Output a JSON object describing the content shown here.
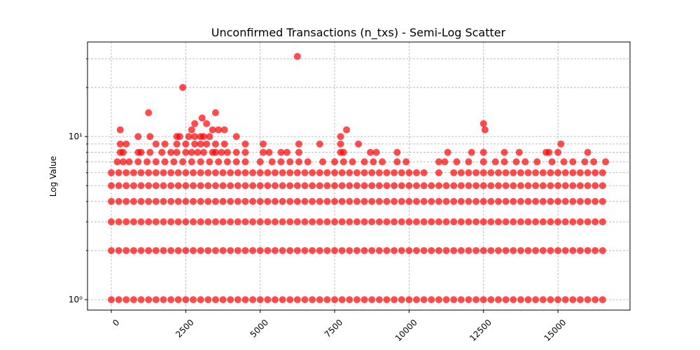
{
  "chart_data": {
    "type": "scatter",
    "title": "Unconfirmed Transactions (n_txs) - Semi-Log Scatter",
    "y_label": "Log Value",
    "color": "#ff0000",
    "log_y": true,
    "grid": true,
    "xlim": [
      -800,
      17420
    ],
    "ylim": [
      0.863,
      38
    ],
    "xticks": [
      0,
      2500,
      5000,
      7500,
      10000,
      12500,
      15000
    ],
    "yticks": [
      {
        "value": 1,
        "label": "10⁰"
      },
      {
        "value": 10,
        "label": "10¹"
      }
    ],
    "yminor": [
      2,
      3,
      4,
      5,
      6,
      7,
      8,
      9,
      20,
      30
    ],
    "x": [
      0,
      250,
      500,
      750,
      1000,
      1250,
      1500,
      1750,
      2000,
      2250,
      2500,
      2750,
      3000,
      3250,
      3500,
      3750,
      4000,
      4250,
      4500,
      4750,
      5000,
      5250,
      5500,
      5750,
      6000,
      6250,
      6500,
      6750,
      7000,
      7250,
      7500,
      7750,
      8000,
      8250,
      8500,
      8750,
      9000,
      9250,
      9500,
      9750,
      10000,
      10250,
      10500,
      10750,
      11000,
      11250,
      11500,
      11750,
      12000,
      12250,
      12500,
      12750,
      13000,
      13250,
      13500,
      13750,
      14000,
      14250,
      14500,
      14750,
      15000,
      15250,
      15500,
      15750,
      16000,
      16250,
      16500,
      0,
      250,
      500,
      750,
      1000,
      1250,
      1500,
      1750,
      2000,
      2250,
      2500,
      2750,
      3000,
      3250,
      3500,
      3750,
      4000,
      4250,
      4500,
      4750,
      5000,
      5250,
      5500,
      5750,
      6000,
      6250,
      6500,
      6750,
      7000,
      7250,
      7500,
      7750,
      8000,
      8250,
      8500,
      8750,
      9000,
      9250,
      9500,
      9750,
      10000,
      10250,
      10500,
      10750,
      11000,
      11250,
      11500,
      11750,
      12000,
      12250,
      12500,
      12750,
      13000,
      13250,
      13500,
      13750,
      14000,
      14250,
      14500,
      14750,
      15000,
      15250,
      15500,
      15750,
      16000,
      16250,
      16500,
      0,
      250,
      500,
      750,
      1000,
      1250,
      1500,
      1750,
      2000,
      2250,
      2500,
      2750,
      3000,
      3250,
      3500,
      3750,
      4000,
      4250,
      4500,
      4750,
      5000,
      5250,
      5500,
      5750,
      6000,
      6250,
      6500,
      6750,
      7000,
      7250,
      7500,
      7750,
      8000,
      8250,
      8500,
      8750,
      9000,
      9250,
      9500,
      9750,
      10000,
      10250,
      10500,
      10750,
      11000,
      11250,
      11500,
      11750,
      12000,
      12250,
      12500,
      12750,
      13000,
      13250,
      13500,
      13750,
      14000,
      14250,
      14500,
      14750,
      15000,
      15250,
      15500,
      15750,
      16000,
      16250,
      16500,
      0,
      250,
      500,
      750,
      1000,
      1250,
      1500,
      1750,
      2000,
      2250,
      2500,
      2750,
      3000,
      3250,
      3500,
      3750,
      4000,
      4250,
      4500,
      4750,
      5000,
      5250,
      5500,
      5750,
      6000,
      6250,
      6500,
      6750,
      7000,
      7250,
      7500,
      7750,
      8000,
      8250,
      8500,
      8750,
      9000,
      9250,
      9500,
      9750,
      10000,
      10250,
      10500,
      10750,
      11000,
      11250,
      11500,
      11750,
      12000,
      12250,
      12500,
      12750,
      13000,
      13250,
      13500,
      13750,
      14000,
      14250,
      14500,
      14750,
      15000,
      15250,
      15500,
      15750,
      16000,
      16250,
      16500,
      0,
      250,
      500,
      750,
      1000,
      1250,
      1500,
      1750,
      2000,
      2250,
      2500,
      2750,
      3000,
      3250,
      3500,
      3750,
      4000,
      4250,
      4500,
      4750,
      5000,
      5250,
      5500,
      5750,
      6000,
      6250,
      6500,
      6750,
      7000,
      7250,
      7500,
      7750,
      8000,
      8250,
      8500,
      8750,
      9000,
      9250,
      9500,
      9750,
      10000,
      10250,
      10500,
      10750,
      11000,
      11250,
      11500,
      11750,
      12000,
      12250,
      12500,
      12750,
      13000,
      13250,
      13500,
      13750,
      14000,
      14250,
      14500,
      14750,
      15000,
      15250,
      15500,
      15750,
      16000,
      16250,
      16500,
      0,
      250,
      500,
      750,
      1000,
      1250,
      1500,
      1750,
      2000,
      2250,
      2500,
      2750,
      3000,
      3250,
      3500,
      3750,
      4000,
      4250,
      4500,
      4750,
      5000,
      5250,
      5500,
      5750,
      6000,
      6250,
      6500,
      6750,
      7000,
      7250,
      7500,
      7750,
      8000,
      8250,
      8500,
      8750,
      9000,
      9250,
      9500,
      9750,
      10000,
      10250,
      10500,
      11000,
      11500,
      11750,
      12000,
      12250,
      12500,
      12750,
      13000,
      13250,
      13500,
      13750,
      14000,
      14250,
      14500,
      14750,
      15000,
      15250,
      15500,
      15750,
      16000,
      16250,
      16500,
      200,
      400,
      600,
      900,
      1200,
      1500,
      1800,
      2100,
      2400,
      2700,
      3000,
      3300,
      3600,
      3900,
      4200,
      4500,
      5000,
      5400,
      5700,
      6000,
      6300,
      6600,
      7100,
      7500,
      7800,
      8100,
      8500,
      8800,
      9100,
      9600,
      9900,
      11000,
      11200,
      11600,
      12000,
      12500,
      12900,
      13200,
      13600,
      13900,
      14300,
      14800,
      15200,
      15500,
      15900,
      16200,
      16600,
      300,
      400,
      900,
      1000,
      1300,
      1700,
      2000,
      2200,
      2500,
      2700,
      2900,
      3100,
      3400,
      3500,
      3700,
      3900,
      4200,
      4500,
      5100,
      5300,
      5700,
      5900,
      6300,
      7700,
      7800,
      8700,
      8900,
      9600,
      11300,
      12100,
      12500,
      13200,
      13700,
      14600,
      14700,
      15000,
      16000,
      300,
      500,
      1500,
      1800,
      2200,
      2500,
      2800,
      3000,
      3200,
      3500,
      3800,
      4500,
      5100,
      6300,
      7000,
      7700,
      8300,
      15100,
      900,
      1300,
      2200,
      2300,
      2600,
      2800,
      3000,
      3100,
      3300,
      4200,
      7700,
      300,
      2700,
      3400,
      3600,
      3800,
      7900,
      12550,
      2800,
      3200,
      12500,
      3050,
      1250,
      3500,
      2400,
      6250
    ],
    "values": [
      1,
      1,
      1,
      1,
      1,
      1,
      1,
      1,
      1,
      1,
      1,
      1,
      1,
      1,
      1,
      1,
      1,
      1,
      1,
      1,
      1,
      1,
      1,
      1,
      1,
      1,
      1,
      1,
      1,
      1,
      1,
      1,
      1,
      1,
      1,
      1,
      1,
      1,
      1,
      1,
      1,
      1,
      1,
      1,
      1,
      1,
      1,
      1,
      1,
      1,
      1,
      1,
      1,
      1,
      1,
      1,
      1,
      1,
      1,
      1,
      1,
      1,
      1,
      1,
      1,
      1,
      1,
      2,
      2,
      2,
      2,
      2,
      2,
      2,
      2,
      2,
      2,
      2,
      2,
      2,
      2,
      2,
      2,
      2,
      2,
      2,
      2,
      2,
      2,
      2,
      2,
      2,
      2,
      2,
      2,
      2,
      2,
      2,
      2,
      2,
      2,
      2,
      2,
      2,
      2,
      2,
      2,
      2,
      2,
      2,
      2,
      2,
      2,
      2,
      2,
      2,
      2,
      2,
      2,
      2,
      2,
      2,
      2,
      2,
      2,
      2,
      2,
      2,
      2,
      2,
      2,
      2,
      2,
      2,
      3,
      3,
      3,
      3,
      3,
      3,
      3,
      3,
      3,
      3,
      3,
      3,
      3,
      3,
      3,
      3,
      3,
      3,
      3,
      3,
      3,
      3,
      3,
      3,
      3,
      3,
      3,
      3,
      3,
      3,
      3,
      3,
      3,
      3,
      3,
      3,
      3,
      3,
      3,
      3,
      3,
      3,
      3,
      3,
      3,
      3,
      3,
      3,
      3,
      3,
      3,
      3,
      3,
      3,
      3,
      3,
      3,
      3,
      3,
      3,
      3,
      3,
      3,
      3,
      3,
      3,
      3,
      4,
      4,
      4,
      4,
      4,
      4,
      4,
      4,
      4,
      4,
      4,
      4,
      4,
      4,
      4,
      4,
      4,
      4,
      4,
      4,
      4,
      4,
      4,
      4,
      4,
      4,
      4,
      4,
      4,
      4,
      4,
      4,
      4,
      4,
      4,
      4,
      4,
      4,
      4,
      4,
      4,
      4,
      4,
      4,
      4,
      4,
      4,
      4,
      4,
      4,
      4,
      4,
      4,
      4,
      4,
      4,
      4,
      4,
      4,
      4,
      4,
      4,
      4,
      4,
      4,
      4,
      4,
      5,
      5,
      5,
      5,
      5,
      5,
      5,
      5,
      5,
      5,
      5,
      5,
      5,
      5,
      5,
      5,
      5,
      5,
      5,
      5,
      5,
      5,
      5,
      5,
      5,
      5,
      5,
      5,
      5,
      5,
      5,
      5,
      5,
      5,
      5,
      5,
      5,
      5,
      5,
      5,
      5,
      5,
      5,
      5,
      5,
      5,
      5,
      5,
      5,
      5,
      5,
      5,
      5,
      5,
      5,
      5,
      5,
      5,
      5,
      5,
      5,
      5,
      5,
      5,
      5,
      5,
      5,
      6,
      6,
      6,
      6,
      6,
      6,
      6,
      6,
      6,
      6,
      6,
      6,
      6,
      6,
      6,
      6,
      6,
      6,
      6,
      6,
      6,
      6,
      6,
      6,
      6,
      6,
      6,
      6,
      6,
      6,
      6,
      6,
      6,
      6,
      6,
      6,
      6,
      6,
      6,
      6,
      6,
      6,
      6,
      6,
      6,
      6,
      6,
      6,
      6,
      6,
      6,
      6,
      6,
      6,
      6,
      6,
      6,
      6,
      6,
      6,
      6,
      6,
      6,
      6,
      6,
      7,
      7,
      7,
      7,
      7,
      7,
      7,
      7,
      7,
      7,
      7,
      7,
      7,
      7,
      7,
      7,
      7,
      7,
      7,
      7,
      7,
      7,
      7,
      7,
      7,
      7,
      7,
      7,
      7,
      7,
      7,
      7,
      7,
      7,
      7,
      7,
      7,
      7,
      7,
      7,
      7,
      7,
      7,
      7,
      7,
      7,
      7,
      8,
      8,
      8,
      8,
      8,
      8,
      8,
      8,
      8,
      8,
      8,
      8,
      8,
      8,
      8,
      8,
      8,
      8,
      8,
      8,
      8,
      8,
      8,
      8,
      8,
      8,
      8,
      8,
      8,
      8,
      8,
      8,
      8,
      8,
      8,
      8,
      8,
      9,
      9,
      9,
      9,
      9,
      9,
      9,
      9,
      9,
      9,
      9,
      9,
      9,
      9,
      9,
      9,
      9,
      9,
      10,
      10,
      10,
      10,
      10,
      10,
      10,
      10,
      10,
      10,
      10,
      11,
      11,
      11,
      11,
      11,
      11,
      11,
      12,
      12,
      12,
      13,
      14,
      14,
      20,
      31
    ]
  }
}
